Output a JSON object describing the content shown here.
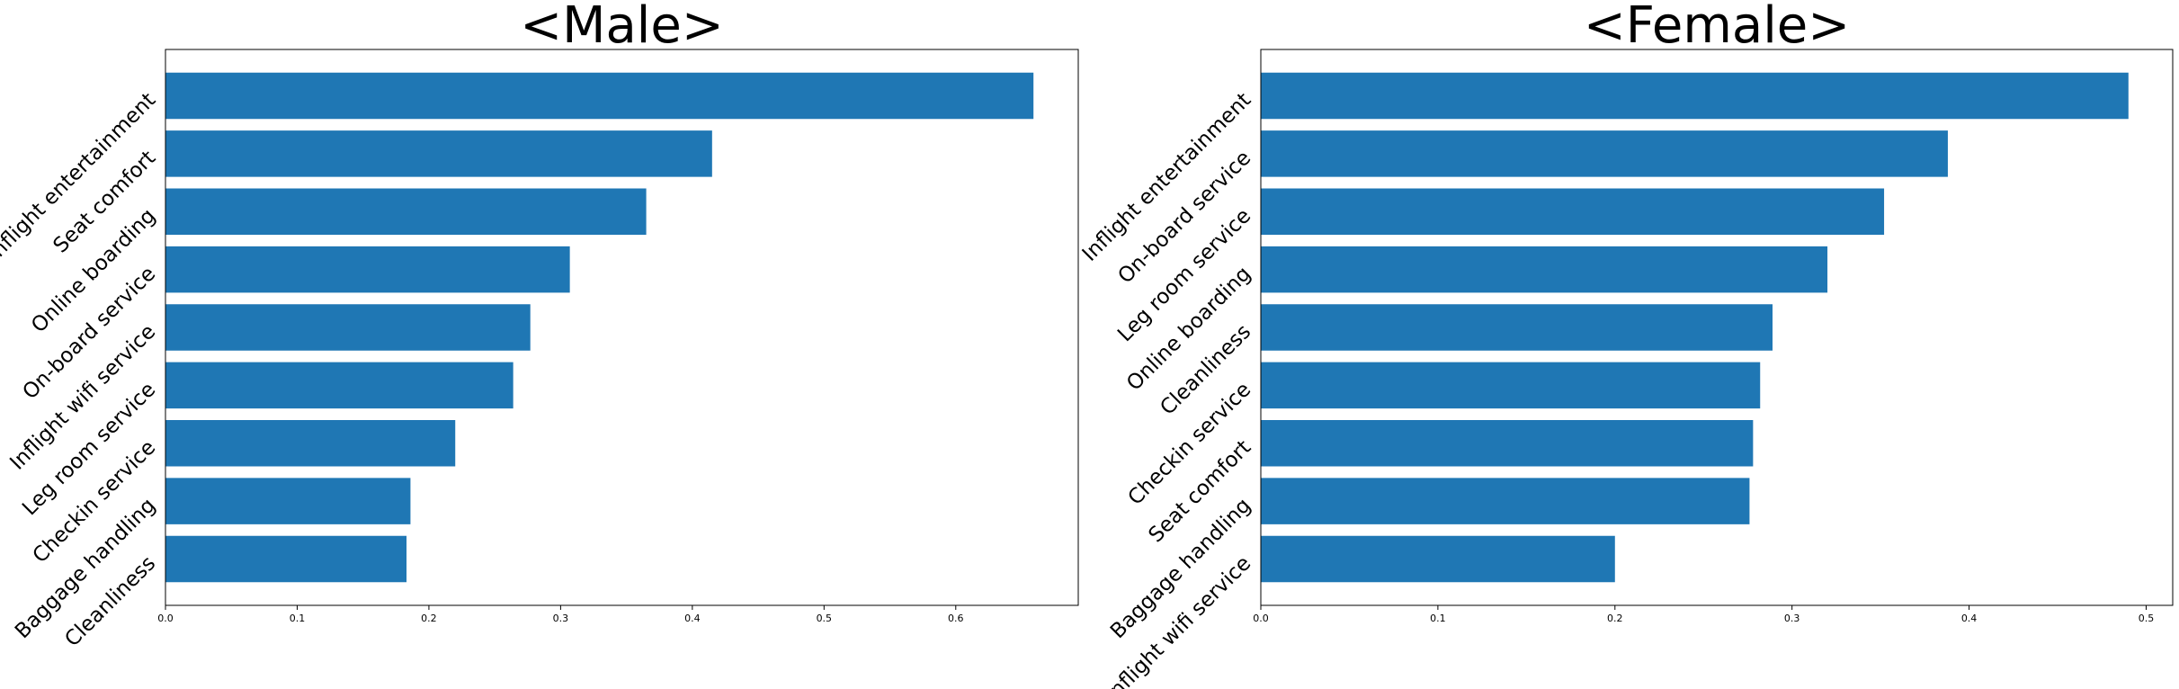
{
  "colors": {
    "bar": "#1f77b4"
  },
  "chart_data": [
    {
      "type": "bar",
      "orientation": "horizontal",
      "title": "<Male>",
      "categories": [
        "Inflight entertainment",
        "Seat comfort",
        "Online boarding",
        "On-board service",
        "Inflight wifi service",
        "Leg room service",
        "Checkin service",
        "Baggage handling",
        "Cleanliness"
      ],
      "values": [
        0.659,
        0.415,
        0.365,
        0.307,
        0.277,
        0.264,
        0.22,
        0.186,
        0.183
      ],
      "xlim": [
        0,
        0.693
      ],
      "xticks": [
        0.0,
        0.1,
        0.2,
        0.3,
        0.4,
        0.5,
        0.6
      ],
      "xtick_labels": [
        "0.0",
        "0.1",
        "0.2",
        "0.3",
        "0.4",
        "0.5",
        "0.6"
      ],
      "grid": false
    },
    {
      "type": "bar",
      "orientation": "horizontal",
      "title": "<Female>",
      "categories": [
        "Inflight entertainment",
        "On-board service",
        "Leg room service",
        "Online boarding",
        "Cleanliness",
        "Checkin service",
        "Seat comfort",
        "Baggage handling",
        "Inflight wifi service"
      ],
      "values": [
        0.49,
        0.388,
        0.352,
        0.32,
        0.289,
        0.282,
        0.278,
        0.276,
        0.2
      ],
      "xlim": [
        0,
        0.515
      ],
      "xticks": [
        0.0,
        0.1,
        0.2,
        0.3,
        0.4,
        0.5
      ],
      "xtick_labels": [
        "0.0",
        "0.1",
        "0.2",
        "0.3",
        "0.4",
        "0.5"
      ],
      "grid": false
    }
  ]
}
